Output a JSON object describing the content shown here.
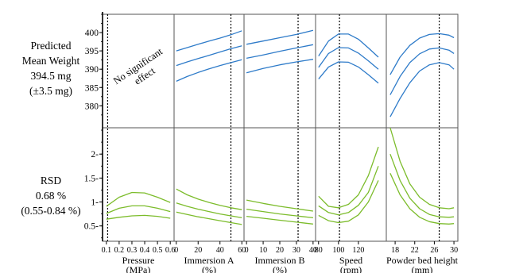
{
  "row_labels": {
    "weight": [
      "Predicted",
      "Mean Weight",
      "394.5 mg",
      "(±3.5 mg)"
    ],
    "rsd": [
      "RSD",
      "0.68 %",
      "(0.55-0.84 %)"
    ]
  },
  "chart_data": {
    "type": "line",
    "title": "",
    "note": {
      "text": [
        "No significant",
        "effect"
      ],
      "panel": "weight-pressure"
    },
    "rows": [
      {
        "key": "weight",
        "ylim": [
          374,
          405
        ],
        "yticks": [
          380,
          385,
          390,
          395,
          400
        ]
      },
      {
        "key": "rsd",
        "ylim": [
          0.18,
          2.55
        ],
        "yticks": [
          0.5,
          1,
          1.5,
          2
        ],
        "ytick_labels": [
          "0.5-",
          "1-",
          "1.5-",
          "2-"
        ]
      }
    ],
    "factors": [
      {
        "name": "pressure",
        "xlabel": [
          "Pressure",
          "(MPa)"
        ],
        "xlim": [
          0.07,
          0.63
        ],
        "xticks": [
          0.1,
          0.2,
          0.3,
          0.4,
          0.5,
          0.6
        ],
        "xtick_labels": [
          "0.1",
          "0.2",
          "0.3",
          "0.4",
          "0.5",
          "0.6"
        ],
        "current": 0.11,
        "weight": null,
        "rsd": {
          "x": [
            0.1,
            0.2,
            0.3,
            0.4,
            0.5,
            0.6
          ],
          "series": [
            {
              "name": "upper",
              "values": [
                0.91,
                1.1,
                1.2,
                1.19,
                1.1,
                0.99
              ]
            },
            {
              "name": "predicted",
              "values": [
                0.76,
                0.87,
                0.92,
                0.92,
                0.87,
                0.8
              ]
            },
            {
              "name": "lower",
              "values": [
                0.64,
                0.68,
                0.71,
                0.72,
                0.7,
                0.66
              ]
            }
          ]
        }
      },
      {
        "name": "immersion_a",
        "xlabel": [
          "Immersion A",
          "(%)"
        ],
        "xlim": [
          -2,
          62
        ],
        "xticks": [
          0,
          20,
          40,
          60
        ],
        "xtick_labels": [
          "0",
          "20",
          "40",
          "60"
        ],
        "current": 50,
        "weight": {
          "x": [
            0,
            10,
            20,
            30,
            40,
            50,
            60
          ],
          "series": [
            {
              "name": "upper",
              "values": [
                395.0,
                395.9,
                396.8,
                397.7,
                398.5,
                399.4,
                400.5
              ]
            },
            {
              "name": "predicted",
              "values": [
                391.0,
                392.0,
                392.9,
                393.8,
                394.7,
                395.6,
                396.4
              ]
            },
            {
              "name": "lower",
              "values": [
                386.7,
                388.0,
                389.1,
                390.1,
                391.0,
                391.8,
                392.6
              ]
            }
          ]
        },
        "rsd": {
          "x": [
            0,
            10,
            20,
            30,
            40,
            50,
            60
          ],
          "series": [
            {
              "name": "upper",
              "values": [
                1.27,
                1.15,
                1.06,
                0.99,
                0.93,
                0.88,
                0.84
              ]
            },
            {
              "name": "predicted",
              "values": [
                0.98,
                0.91,
                0.85,
                0.8,
                0.75,
                0.71,
                0.67
              ]
            },
            {
              "name": "lower",
              "values": [
                0.79,
                0.74,
                0.69,
                0.65,
                0.61,
                0.57,
                0.53
              ]
            }
          ]
        }
      },
      {
        "name": "immersion_b",
        "xlabel": [
          "Immersion B",
          "(%)"
        ],
        "xlim": [
          -1.5,
          41.5
        ],
        "xticks": [
          0,
          10,
          20,
          30,
          40
        ],
        "xtick_labels": [
          "0",
          "10",
          "20",
          "30",
          "40"
        ],
        "current": 31,
        "weight": {
          "x": [
            0,
            10,
            20,
            30,
            40
          ],
          "series": [
            {
              "name": "upper",
              "values": [
                396.8,
                397.7,
                398.6,
                399.5,
                400.6
              ]
            },
            {
              "name": "predicted",
              "values": [
                393.0,
                393.9,
                394.9,
                395.8,
                396.7
              ]
            },
            {
              "name": "lower",
              "values": [
                389.0,
                390.2,
                391.2,
                392.0,
                392.7
              ]
            }
          ]
        },
        "rsd": {
          "x": [
            0,
            10,
            20,
            30,
            40
          ],
          "series": [
            {
              "name": "upper",
              "values": [
                1.04,
                0.97,
                0.91,
                0.86,
                0.81
              ]
            },
            {
              "name": "predicted",
              "values": [
                0.85,
                0.8,
                0.75,
                0.71,
                0.67
              ]
            },
            {
              "name": "lower",
              "values": [
                0.7,
                0.66,
                0.62,
                0.58,
                0.54
              ]
            }
          ]
        }
      },
      {
        "name": "speed",
        "xlabel": [
          "Speed",
          "(rpm)"
        ],
        "xlim": [
          77,
          148
        ],
        "xticks": [
          80,
          100,
          120
        ],
        "xtick_labels": [
          "80",
          "100",
          "120"
        ],
        "current": 101,
        "weight": {
          "x": [
            80,
            90,
            100,
            110,
            120,
            130,
            140
          ],
          "series": [
            {
              "name": "upper",
              "values": [
                393.6,
                397.7,
                399.6,
                399.6,
                398.2,
                395.8,
                393.3
              ]
            },
            {
              "name": "predicted",
              "values": [
                390.5,
                394.3,
                395.9,
                395.8,
                394.4,
                392.3,
                390.0
              ]
            },
            {
              "name": "lower",
              "values": [
                387.3,
                390.6,
                392.0,
                391.9,
                390.6,
                388.5,
                386.2
              ]
            }
          ]
        },
        "rsd": {
          "x": [
            80,
            90,
            100,
            110,
            120,
            130,
            140
          ],
          "series": [
            {
              "name": "upper",
              "values": [
                1.12,
                0.91,
                0.88,
                0.95,
                1.15,
                1.55,
                2.15
              ]
            },
            {
              "name": "predicted",
              "values": [
                0.92,
                0.78,
                0.73,
                0.78,
                0.93,
                1.2,
                1.75
              ]
            },
            {
              "name": "lower",
              "values": [
                0.72,
                0.61,
                0.57,
                0.6,
                0.73,
                1.0,
                1.45
              ]
            }
          ]
        }
      },
      {
        "name": "powder_bed_height",
        "xlabel": [
          "Powder bed height",
          "(mm)"
        ],
        "xlim": [
          16.2,
          30.8
        ],
        "xticks": [
          18,
          22,
          26,
          30
        ],
        "xtick_labels": [
          "18",
          "22",
          "26",
          "30"
        ],
        "current": 27,
        "weight": {
          "x": [
            17,
            19,
            21,
            23,
            25,
            27,
            29,
            30
          ],
          "series": [
            {
              "name": "upper",
              "values": [
                388.5,
                393.3,
                396.5,
                398.5,
                399.5,
                399.7,
                399.3,
                398.6
              ]
            },
            {
              "name": "predicted",
              "values": [
                383.0,
                388.0,
                391.8,
                394.2,
                395.5,
                395.8,
                395.2,
                394.3
              ]
            },
            {
              "name": "lower",
              "values": [
                377.0,
                382.0,
                386.3,
                389.5,
                391.2,
                391.8,
                391.2,
                390.0
              ]
            }
          ]
        },
        "rsd": {
          "x": [
            17,
            19,
            21,
            23,
            25,
            27,
            29,
            30
          ],
          "series": [
            {
              "name": "upper",
              "values": [
                2.55,
                1.85,
                1.38,
                1.1,
                0.95,
                0.88,
                0.86,
                0.88
              ]
            },
            {
              "name": "predicted",
              "values": [
                2.0,
                1.45,
                1.08,
                0.86,
                0.74,
                0.69,
                0.68,
                0.69
              ]
            },
            {
              "name": "lower",
              "values": [
                1.6,
                1.15,
                0.86,
                0.68,
                0.59,
                0.55,
                0.54,
                0.55
              ]
            }
          ]
        }
      }
    ],
    "colors": {
      "weight": "#2e7bc9",
      "rsd": "#7cbc2b",
      "frame": "#555555",
      "current": "#000000"
    }
  }
}
